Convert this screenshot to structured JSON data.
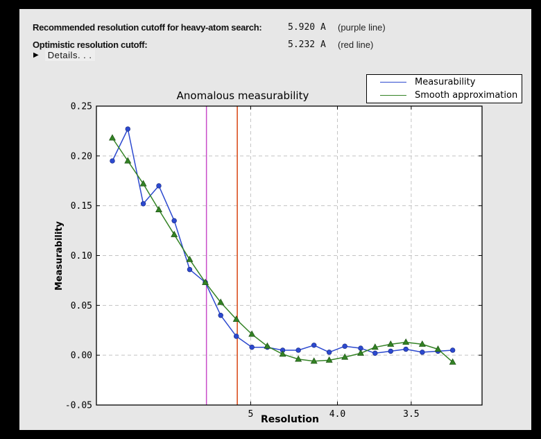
{
  "header": {
    "row1": {
      "label": "Recommended resolution cutoff for heavy-atom search:",
      "value": "5.920 A",
      "note": "(purple line)"
    },
    "row2": {
      "label": "Optimistic resolution cutoff:",
      "value": "5.232 A",
      "note": "(red line)"
    },
    "details": {
      "triangle": "▶",
      "label": "Details. . ."
    }
  },
  "chart_data": {
    "type": "line",
    "title": "Anomalous measurability",
    "xlabel": "Resolution",
    "ylabel": "Measurability",
    "grid": true,
    "x_axis": {
      "unit": "Angstrom",
      "scale": "1/d^2",
      "range_inv_d2": [
        0,
        0.1
      ],
      "ticks": [
        {
          "label": "5",
          "d": 5.0
        },
        {
          "label": "4.0",
          "d": 4.0
        },
        {
          "label": "3.5",
          "d": 3.5
        }
      ]
    },
    "y_axis": {
      "range": [
        -0.05,
        0.25
      ],
      "tick_values": [
        0.25,
        0.2,
        0.15,
        0.1,
        0.05,
        0.0,
        -0.05
      ],
      "tick_labels": [
        "0.25",
        "0.20",
        "0.15",
        "0.10",
        "0.05",
        "0.00",
        "-0.05"
      ]
    },
    "resolution_A": [
      15.55,
      11.08,
      9.07,
      7.86,
      7.04,
      6.43,
      5.95,
      5.57,
      5.25,
      4.98,
      4.75,
      4.55,
      4.37,
      4.21,
      4.07,
      3.94,
      3.82,
      3.72,
      3.62,
      3.53,
      3.44,
      3.36,
      3.29
    ],
    "series": [
      {
        "name": "Measurability",
        "color": "#2c49cf",
        "marker": "circle",
        "values": [
          0.195,
          0.227,
          0.152,
          0.17,
          0.135,
          0.086,
          0.073,
          0.04,
          0.019,
          0.008,
          0.008,
          0.005,
          0.005,
          0.01,
          0.003,
          0.009,
          0.007,
          0.002,
          0.004,
          0.006,
          0.003,
          0.004,
          0.005
        ]
      },
      {
        "name": "Smooth approximation",
        "color": "#338224",
        "marker": "triangle",
        "values": [
          0.218,
          0.195,
          0.172,
          0.146,
          0.121,
          0.096,
          0.073,
          0.053,
          0.036,
          0.021,
          0.009,
          0.001,
          -0.004,
          -0.006,
          -0.005,
          -0.002,
          0.002,
          0.008,
          0.011,
          0.013,
          0.011,
          0.006,
          -0.007
        ]
      }
    ],
    "vlines": [
      {
        "name": "recommended-cutoff",
        "d": 5.92,
        "color": "#c84bc8",
        "label": "purple line"
      },
      {
        "name": "optimistic-cutoff",
        "d": 5.232,
        "color": "#d8430f",
        "label": "red line"
      }
    ],
    "legend": {
      "position": "top-right",
      "entries": [
        {
          "label": "Measurability",
          "color": "#2c49cf"
        },
        {
          "label": "Smooth approximation",
          "color": "#338224"
        }
      ]
    },
    "colors": {
      "plot_bg": "#ffffff",
      "figure_bg": "#e7e7e7",
      "grid": "#c3c3c3",
      "axis": "#000000"
    }
  }
}
